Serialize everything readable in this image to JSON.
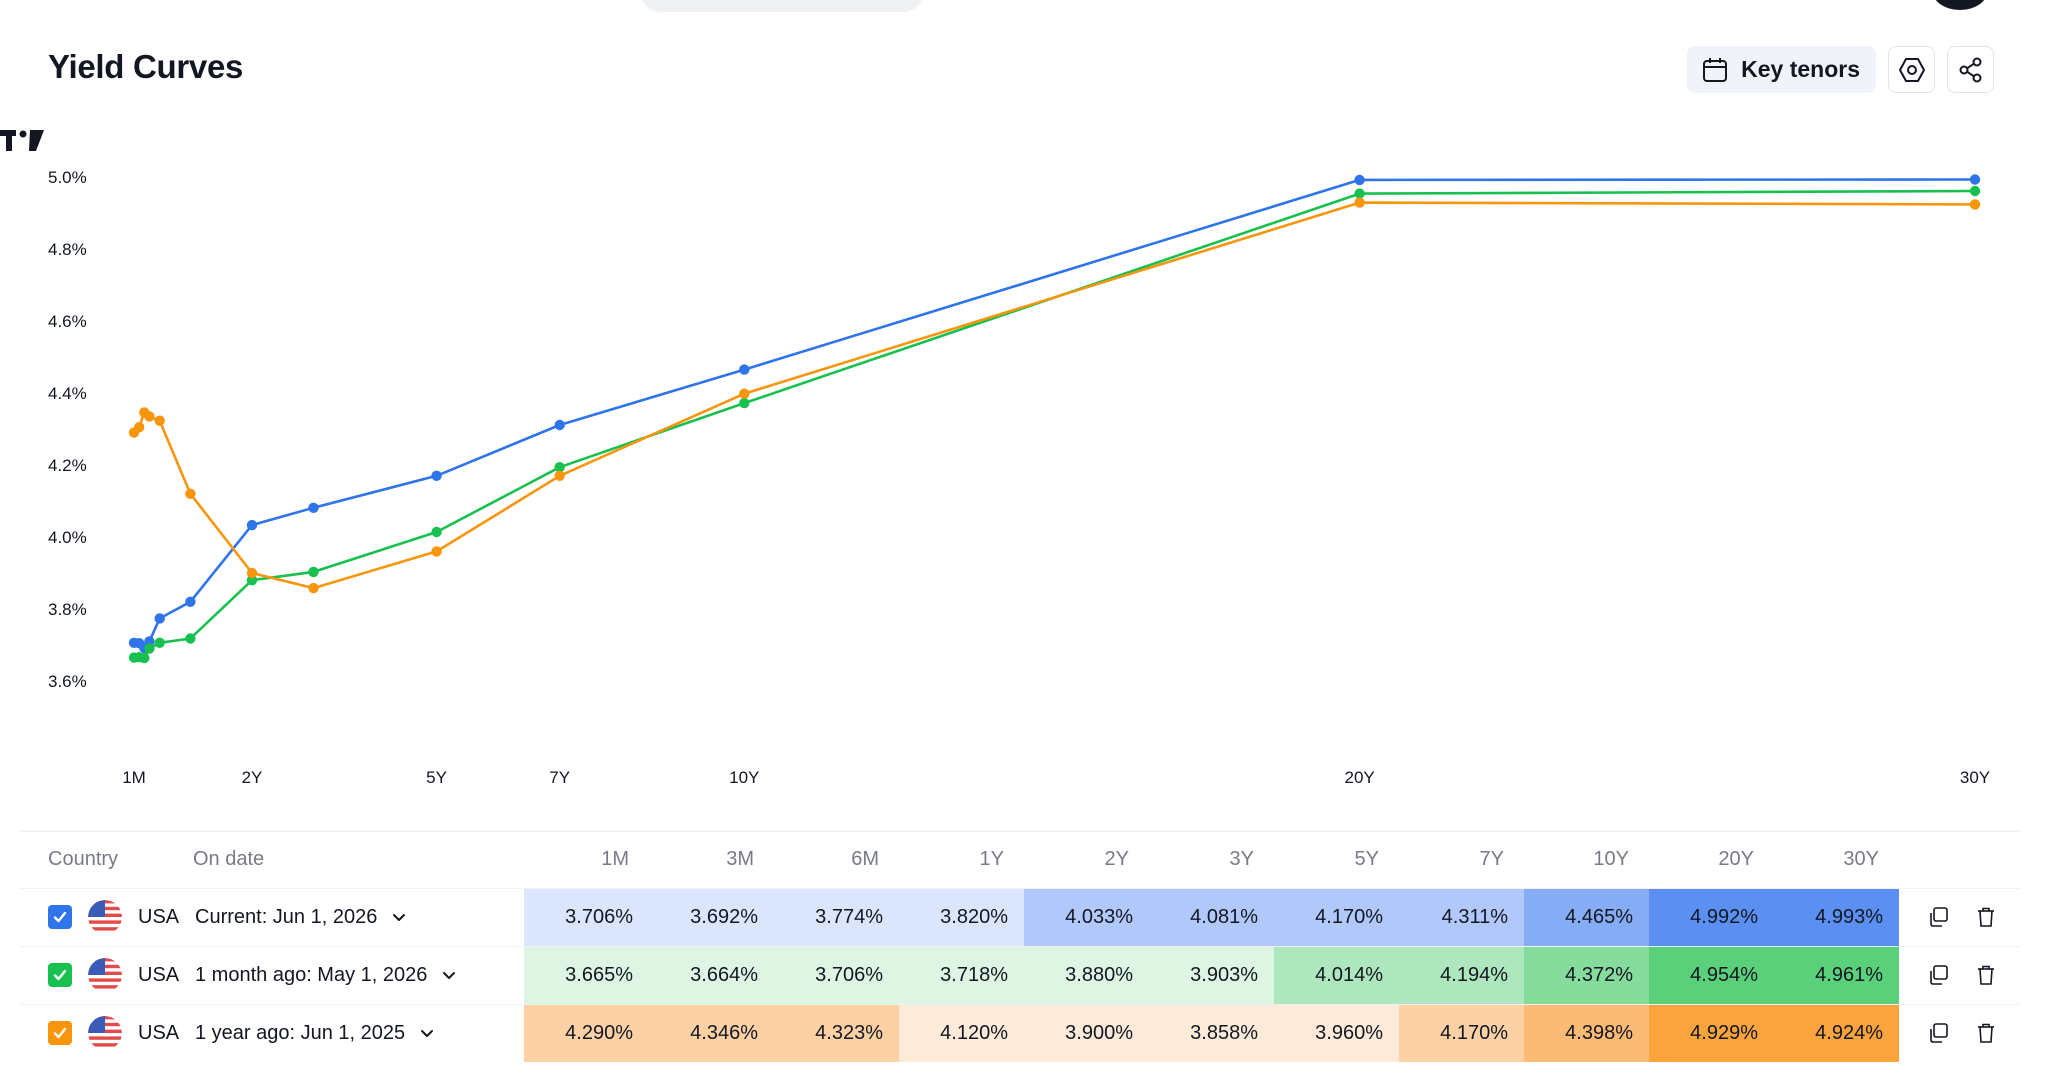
{
  "page": {
    "title": "Yield Curves"
  },
  "toolbar": {
    "key_tenors_label": "Key tenors",
    "calendar_icon": "calendar-icon",
    "settings_icon": "hexagon-settings-icon",
    "share_icon": "share-icon"
  },
  "chart_data": {
    "type": "line",
    "y_ticks": [
      "5.0%",
      "4.8%",
      "4.6%",
      "4.4%",
      "4.2%",
      "4.0%",
      "3.8%",
      "3.6%"
    ],
    "y_tick_values": [
      5.0,
      4.8,
      4.6,
      4.4,
      4.2,
      4.0,
      3.8,
      3.6
    ],
    "ylim": [
      3.6,
      5.0
    ],
    "x_ticks": [
      "1M",
      "2Y",
      "5Y",
      "7Y",
      "10Y",
      "20Y",
      "30Y"
    ],
    "x_tick_years": [
      0.083,
      2,
      5,
      7,
      10,
      20,
      30
    ],
    "x_scale": "time to maturity (years)",
    "tenors": [
      "1M",
      "2M",
      "3M",
      "4M",
      "6M",
      "1Y",
      "2Y",
      "3Y",
      "5Y",
      "7Y",
      "10Y",
      "20Y",
      "30Y"
    ],
    "tenor_years": [
      0.083,
      0.167,
      0.25,
      0.333,
      0.5,
      1,
      2,
      3,
      5,
      7,
      10,
      20,
      30
    ],
    "series": [
      {
        "color": "#2f74e8",
        "values": [
          3.706,
          3.705,
          3.692,
          3.71,
          3.774,
          3.82,
          4.033,
          4.081,
          4.17,
          4.311,
          4.465,
          4.992,
          4.993
        ]
      },
      {
        "color": "#18c14f",
        "values": [
          3.665,
          3.666,
          3.664,
          3.69,
          3.706,
          3.718,
          3.88,
          3.903,
          4.014,
          4.194,
          4.372,
          4.954,
          4.961
        ]
      },
      {
        "color": "#f7950d",
        "values": [
          4.29,
          4.305,
          4.346,
          4.335,
          4.323,
          4.12,
          3.9,
          3.858,
          3.96,
          4.17,
          4.398,
          4.929,
          4.924
        ]
      }
    ]
  },
  "table": {
    "headers": {
      "country": "Country",
      "on_date": "On date",
      "tenors": [
        "1M",
        "3M",
        "6M",
        "1Y",
        "2Y",
        "3Y",
        "5Y",
        "7Y",
        "10Y",
        "20Y",
        "30Y"
      ]
    },
    "rows": [
      {
        "checkbox_color": "#2f74e8",
        "country": "USA",
        "date": "Current: Jun 1, 2026",
        "values": [
          "3.706%",
          "3.692%",
          "3.774%",
          "3.820%",
          "4.033%",
          "4.081%",
          "4.170%",
          "4.311%",
          "4.465%",
          "4.992%",
          "4.993%"
        ],
        "cell_colors": [
          "#dbe6fd",
          "#dbe6fd",
          "#dbe6fd",
          "#dbe6fd",
          "#b1c9fa",
          "#b1c9fa",
          "#b1c9fa",
          "#b1c9fa",
          "#87acf6",
          "#5b8ff2",
          "#5b8ff2"
        ]
      },
      {
        "checkbox_color": "#18c14f",
        "country": "USA",
        "date": "1 month ago: May 1, 2026",
        "values": [
          "3.665%",
          "3.664%",
          "3.706%",
          "3.718%",
          "3.880%",
          "3.903%",
          "4.014%",
          "4.194%",
          "4.372%",
          "4.954%",
          "4.961%"
        ],
        "cell_colors": [
          "#dff5e4",
          "#dff5e4",
          "#dff5e4",
          "#dff5e4",
          "#dff5e4",
          "#dff5e4",
          "#aee6bd",
          "#aee6bd",
          "#86dc9d",
          "#5bd07a",
          "#5bd07a"
        ]
      },
      {
        "checkbox_color": "#f7950d",
        "country": "USA",
        "date": "1 year ago: Jun 1, 2025",
        "values": [
          "4.290%",
          "4.346%",
          "4.323%",
          "4.120%",
          "3.900%",
          "3.858%",
          "3.960%",
          "4.170%",
          "4.398%",
          "4.929%",
          "4.924%"
        ],
        "cell_colors": [
          "#fdd1a3",
          "#fdd1a3",
          "#fdd1a3",
          "#feead8",
          "#feead8",
          "#feead8",
          "#feead8",
          "#fdd1a3",
          "#fcbb74",
          "#fba43d",
          "#fba43d"
        ]
      }
    ],
    "row_icons": [
      "usa-flag-icon",
      "chevron-down-icon",
      "copy-icon",
      "trash-icon"
    ]
  }
}
